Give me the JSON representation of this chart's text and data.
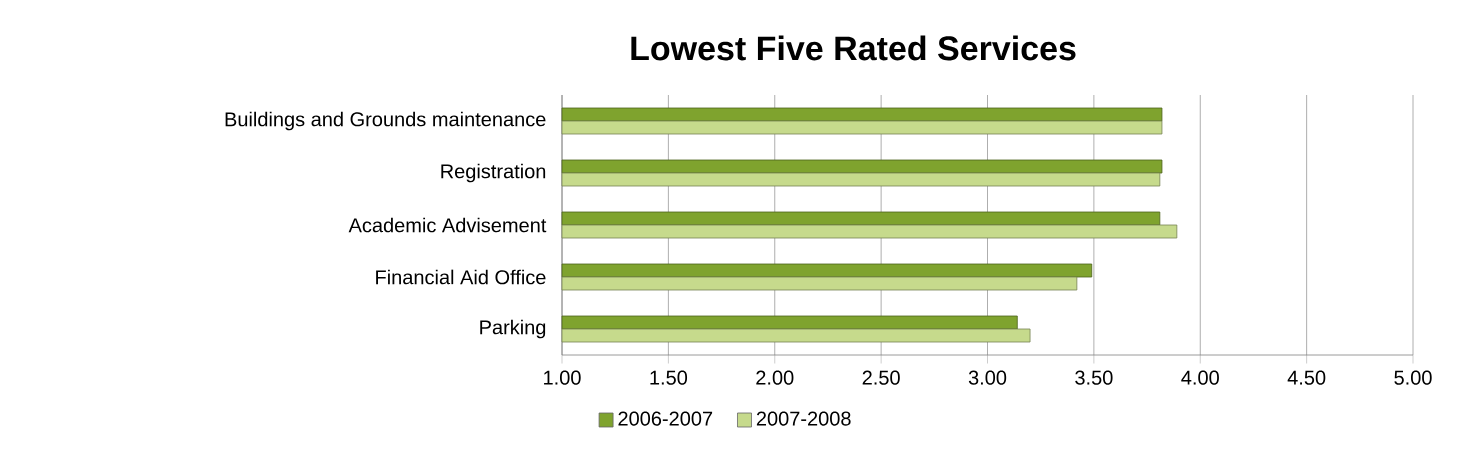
{
  "chart_data": {
    "type": "bar",
    "orientation": "horizontal",
    "title": "Lowest Five Rated Services",
    "categories": [
      "Buildings and Grounds maintenance",
      "Registration",
      "Academic Advisement",
      "Financial Aid Office",
      "Parking"
    ],
    "series": [
      {
        "name": "2006-2007",
        "color": "#7fa32e",
        "values": [
          3.82,
          3.82,
          3.81,
          3.49,
          3.14
        ]
      },
      {
        "name": "2007-2008",
        "color": "#c6da8c",
        "values": [
          3.82,
          3.81,
          3.89,
          3.42,
          3.2
        ]
      }
    ],
    "xlim": [
      1,
      5
    ],
    "xticks": [
      {
        "value": 1,
        "label": "1.00"
      },
      {
        "value": 1.5,
        "label": "1.50"
      },
      {
        "value": 2,
        "label": "2.00"
      },
      {
        "value": 2.5,
        "label": "2.50"
      },
      {
        "value": 3,
        "label": "3.00"
      },
      {
        "value": 3.5,
        "label": "3.50"
      },
      {
        "value": 4,
        "label": "4.00"
      },
      {
        "value": 4.5,
        "label": "4.50"
      },
      {
        "value": 5,
        "label": "5.00"
      }
    ],
    "grid": "x",
    "legend": "bottom"
  }
}
